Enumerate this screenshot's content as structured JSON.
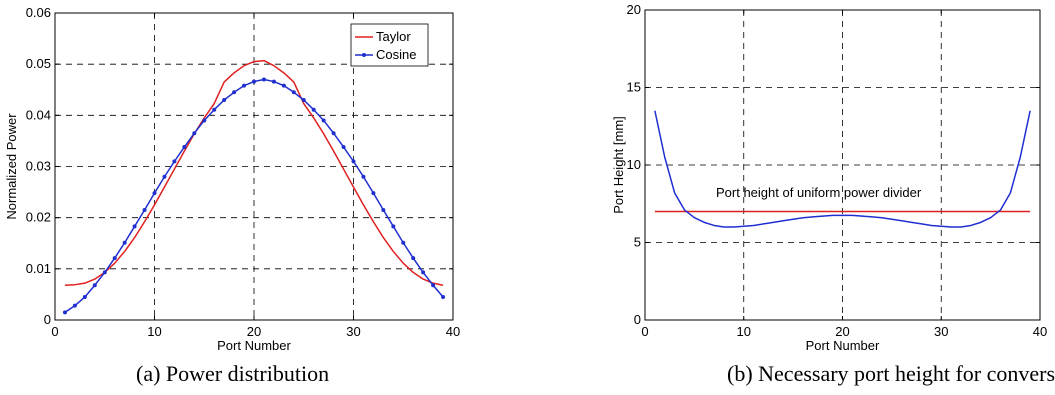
{
  "colors": {
    "taylor": "#e02020",
    "cosine": "#1f2fd0",
    "uniform": "#e02020",
    "height": "#1f2fd0"
  },
  "chart_data": [
    {
      "type": "line",
      "caption": "(a) Power distribution",
      "xlabel": "Port Number",
      "ylabel": "Normalized Power",
      "xlim": [
        0,
        40
      ],
      "ylim": [
        0,
        0.06
      ],
      "xticks": [
        "0",
        "10",
        "20",
        "30",
        "40"
      ],
      "yticks": [
        "0",
        "0.01",
        "0.02",
        "0.03",
        "0.04",
        "0.05",
        "0.06"
      ],
      "grid": true,
      "legend": "top-right",
      "series": [
        {
          "name": "Taylor",
          "marker": "none",
          "x": [
            1,
            2,
            3,
            4,
            5,
            6,
            7,
            8,
            9,
            10,
            11,
            12,
            13,
            14,
            15,
            16,
            17,
            18,
            19,
            20,
            21,
            22,
            23,
            24,
            25,
            26,
            27,
            28,
            29,
            30,
            31,
            32,
            33,
            34,
            35,
            36,
            37,
            38,
            39
          ],
          "y": [
            0.0068,
            0.0069,
            0.0072,
            0.008,
            0.0093,
            0.0111,
            0.0134,
            0.0161,
            0.0192,
            0.0225,
            0.026,
            0.0295,
            0.033,
            0.0364,
            0.0395,
            0.0423,
            0.0465,
            0.0483,
            0.0497,
            0.0505,
            0.0507,
            0.0497,
            0.0483,
            0.0465,
            0.0423,
            0.0395,
            0.0364,
            0.033,
            0.0295,
            0.026,
            0.0225,
            0.0192,
            0.0161,
            0.0134,
            0.0111,
            0.0093,
            0.008,
            0.0072,
            0.0068
          ]
        },
        {
          "name": "Cosine",
          "marker": "dot",
          "x": [
            1,
            2,
            3,
            4,
            5,
            6,
            7,
            8,
            9,
            10,
            11,
            12,
            13,
            14,
            15,
            16,
            17,
            18,
            19,
            20,
            21,
            22,
            23,
            24,
            25,
            26,
            27,
            28,
            29,
            30,
            31,
            32,
            33,
            34,
            35,
            36,
            37,
            38,
            39
          ],
          "y": [
            0.0015,
            0.0028,
            0.0045,
            0.0068,
            0.0093,
            0.0121,
            0.0151,
            0.0183,
            0.0215,
            0.0248,
            0.028,
            0.031,
            0.0338,
            0.0365,
            0.039,
            0.0411,
            0.043,
            0.0445,
            0.0458,
            0.0466,
            0.047,
            0.0466,
            0.0458,
            0.0445,
            0.043,
            0.0411,
            0.039,
            0.0365,
            0.0338,
            0.031,
            0.028,
            0.0248,
            0.0215,
            0.0183,
            0.0151,
            0.0121,
            0.0093,
            0.0068,
            0.0045
          ]
        }
      ]
    },
    {
      "type": "line",
      "caption": "(b) Necessary port height for conversio",
      "xlabel": "Port Number",
      "ylabel": "Port Height [mm]",
      "xlim": [
        0,
        40
      ],
      "ylim": [
        0,
        20
      ],
      "xticks": [
        "0",
        "10",
        "20",
        "30",
        "40"
      ],
      "yticks": [
        "0",
        "5",
        "10",
        "15",
        "20"
      ],
      "grid": true,
      "annotation": "Port height of uniform power divider",
      "series": [
        {
          "role": "uniform",
          "x": [
            1,
            39
          ],
          "y": [
            7.0,
            7.0
          ]
        },
        {
          "role": "height",
          "x": [
            1,
            2,
            3,
            4,
            5,
            6,
            7,
            8,
            9,
            10,
            11,
            12,
            13,
            14,
            15,
            16,
            17,
            18,
            19,
            20,
            21,
            22,
            23,
            24,
            25,
            26,
            27,
            28,
            29,
            30,
            31,
            32,
            33,
            34,
            35,
            36,
            37,
            38,
            39
          ],
          "y": [
            13.5,
            10.5,
            8.2,
            7.1,
            6.6,
            6.3,
            6.1,
            6.0,
            6.0,
            6.05,
            6.1,
            6.2,
            6.3,
            6.4,
            6.5,
            6.6,
            6.65,
            6.7,
            6.75,
            6.75,
            6.75,
            6.7,
            6.65,
            6.6,
            6.5,
            6.4,
            6.3,
            6.2,
            6.1,
            6.05,
            6.0,
            6.0,
            6.1,
            6.3,
            6.6,
            7.1,
            8.2,
            10.5,
            13.5
          ]
        }
      ]
    }
  ]
}
